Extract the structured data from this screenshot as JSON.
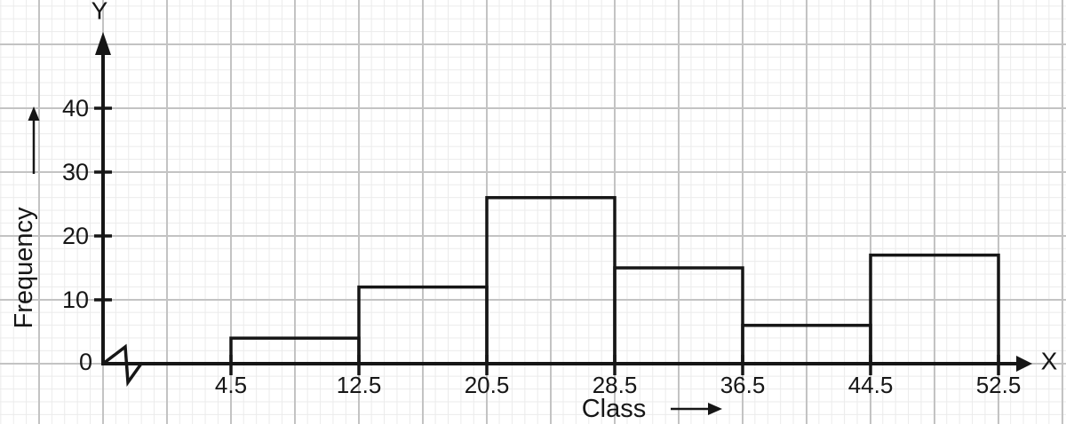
{
  "figure": {
    "y_axis_name": "Y",
    "x_axis_name": "X",
    "origin_label": "0"
  },
  "chart_data": {
    "type": "bar",
    "subtype": "histogram",
    "title": "",
    "xlabel": "Class",
    "ylabel": "Frequency",
    "bin_edges": [
      4.5,
      12.5,
      20.5,
      28.5,
      36.5,
      44.5,
      52.5
    ],
    "frequencies": [
      4,
      12,
      26,
      15,
      6,
      17
    ],
    "x_tick_labels": [
      "4.5",
      "12.5",
      "20.5",
      "28.5",
      "36.5",
      "44.5",
      "52.5"
    ],
    "y_ticks": [
      0,
      10,
      20,
      30,
      40
    ],
    "ylim": [
      0,
      50
    ],
    "xlim": [
      -3.5,
      54.5
    ],
    "axis_break_near_origin": true,
    "grid": "graph-paper",
    "legend": "none",
    "colors": {
      "line": "#161616",
      "grid_major": "#c3c3c3",
      "grid_minor": "#ebebeb",
      "background": "#ffffff"
    }
  }
}
